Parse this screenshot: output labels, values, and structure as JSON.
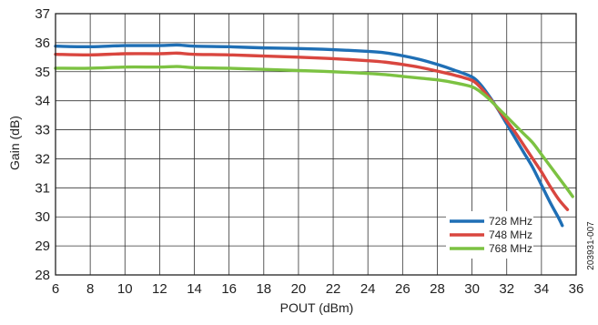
{
  "chart_data": {
    "type": "line",
    "xlabel": "POUT (dBm)",
    "ylabel": "Gain (dB)",
    "xlim": [
      6,
      36
    ],
    "ylim": [
      28,
      37
    ],
    "xticks": [
      6,
      8,
      10,
      12,
      14,
      16,
      18,
      20,
      22,
      24,
      26,
      28,
      30,
      32,
      34,
      36
    ],
    "yticks": [
      28,
      29,
      30,
      31,
      32,
      33,
      34,
      35,
      36,
      37
    ],
    "grid": true,
    "legend_position": "bottom-right",
    "figure_id": "203931-007",
    "series": [
      {
        "name": "728 MHz",
        "color": "#1f6fb5",
        "x": [
          6,
          8,
          10,
          12,
          13,
          14,
          16,
          18,
          20,
          22,
          24,
          25,
          26,
          27,
          28,
          29,
          30,
          30.5,
          31,
          31.5,
          32,
          32.5,
          33,
          33.5,
          34,
          34.5,
          35,
          35.2
        ],
        "y": [
          35.88,
          35.86,
          35.9,
          35.9,
          35.92,
          35.88,
          35.86,
          35.82,
          35.8,
          35.76,
          35.7,
          35.65,
          35.55,
          35.42,
          35.25,
          35.05,
          34.82,
          34.55,
          34.15,
          33.7,
          33.2,
          32.7,
          32.2,
          31.7,
          31.1,
          30.5,
          29.95,
          29.7
        ]
      },
      {
        "name": "748 MHz",
        "color": "#d9463f",
        "x": [
          6,
          8,
          10,
          12,
          13,
          14,
          16,
          18,
          20,
          22,
          24,
          25,
          26,
          27,
          28,
          29,
          30,
          30.5,
          31,
          31.5,
          32,
          32.5,
          33,
          33.5,
          34,
          34.5,
          35,
          35.5
        ],
        "y": [
          35.6,
          35.58,
          35.62,
          35.62,
          35.64,
          35.6,
          35.58,
          35.54,
          35.5,
          35.45,
          35.38,
          35.33,
          35.25,
          35.15,
          35.02,
          34.88,
          34.7,
          34.45,
          34.1,
          33.72,
          33.3,
          32.9,
          32.45,
          32.0,
          31.55,
          31.05,
          30.6,
          30.25
        ]
      },
      {
        "name": "768 MHz",
        "color": "#7cc242",
        "x": [
          6,
          8,
          10,
          12,
          13,
          14,
          16,
          18,
          20,
          22,
          24,
          25,
          26,
          27,
          28,
          29,
          30,
          30.5,
          31,
          31.5,
          32,
          32.5,
          33,
          33.5,
          34,
          34.5,
          35,
          35.5,
          35.8
        ],
        "y": [
          35.12,
          35.12,
          35.16,
          35.16,
          35.18,
          35.14,
          35.12,
          35.08,
          35.04,
          35.0,
          34.94,
          34.9,
          34.84,
          34.78,
          34.72,
          34.62,
          34.48,
          34.3,
          34.05,
          33.75,
          33.45,
          33.15,
          32.85,
          32.55,
          32.15,
          31.75,
          31.35,
          30.95,
          30.7
        ]
      }
    ]
  }
}
